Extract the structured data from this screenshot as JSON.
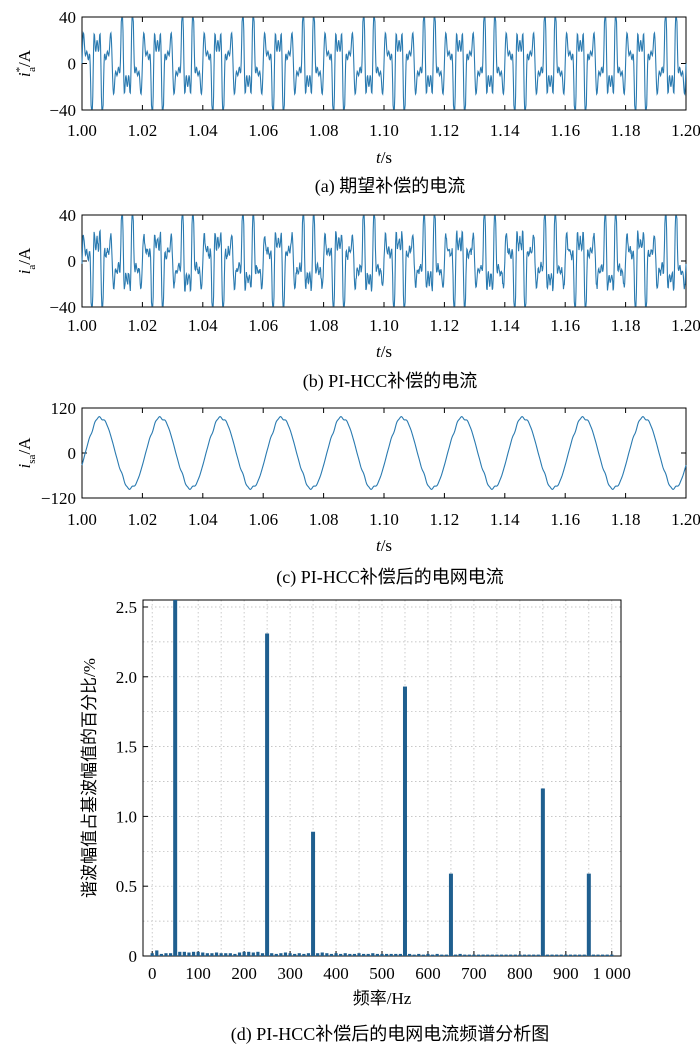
{
  "chart_data": [
    {
      "type": "line",
      "caption": "(a) 期望补偿的电流",
      "ylabel_base": "i",
      "ylabel_sup": "*",
      "ylabel_sub": "a",
      "ylabel_unit": "/A",
      "xlabel_italic": "t",
      "xlabel_unit": "/s",
      "x_range": [
        1.0,
        1.2
      ],
      "xlim": [
        1.0,
        1.2
      ],
      "ylim": [
        -40,
        40
      ],
      "xticks": [
        "1.00",
        "1.02",
        "1.04",
        "1.06",
        "1.08",
        "1.10",
        "1.12",
        "1.14",
        "1.16",
        "1.18",
        "1.20"
      ],
      "yticks": [
        "40",
        "0",
        "−40"
      ],
      "ytick_values": [
        40,
        0,
        -40
      ],
      "waveform": {
        "fundamental_hz": 50,
        "harmonics": [
          [
            5,
            22
          ],
          [
            7,
            6
          ],
          [
            11,
            17
          ],
          [
            13,
            5
          ],
          [
            17,
            10
          ],
          [
            19,
            4
          ]
        ],
        "noise": 0
      },
      "color": "#2a7ab0"
    },
    {
      "type": "line",
      "caption": "(b) PI-HCC补偿的电流",
      "ylabel_base": "i",
      "ylabel_sup": "",
      "ylabel_sub": "a",
      "ylabel_unit": "/A",
      "xlabel_italic": "t",
      "xlabel_unit": "/s",
      "x_range": [
        1.0,
        1.2
      ],
      "xlim": [
        1.0,
        1.2
      ],
      "ylim": [
        -40,
        40
      ],
      "xticks": [
        "1.00",
        "1.02",
        "1.04",
        "1.06",
        "1.08",
        "1.10",
        "1.12",
        "1.14",
        "1.16",
        "1.18",
        "1.20"
      ],
      "yticks": [
        "40",
        "0",
        "−40"
      ],
      "ytick_values": [
        40,
        0,
        -40
      ],
      "waveform": {
        "fundamental_hz": 50,
        "harmonics": [
          [
            5,
            21
          ],
          [
            7,
            7
          ],
          [
            11,
            16
          ],
          [
            13,
            6
          ],
          [
            17,
            10
          ],
          [
            19,
            4
          ]
        ],
        "noise": 2.5
      },
      "color": "#2a7ab0"
    },
    {
      "type": "line",
      "caption": "(c) PI-HCC补偿后的电网电流",
      "ylabel_base": "i",
      "ylabel_sup": "",
      "ylabel_sub": "sa",
      "ylabel_unit": "/A",
      "xlabel_italic": "t",
      "xlabel_unit": "/s",
      "x_range": [
        1.0,
        1.2
      ],
      "xlim": [
        1.0,
        1.2
      ],
      "ylim": [
        -120,
        120
      ],
      "xticks": [
        "1.00",
        "1.02",
        "1.04",
        "1.06",
        "1.08",
        "1.10",
        "1.12",
        "1.14",
        "1.16",
        "1.18",
        "1.20"
      ],
      "yticks": [
        "120",
        "0",
        "−120"
      ],
      "ytick_values": [
        120,
        0,
        -120
      ],
      "waveform": {
        "fundamental_hz": 50,
        "amplitude": 95,
        "phase_deg": -20,
        "harmonics": [
          [
            5,
            2
          ],
          [
            7,
            1.5
          ],
          [
            11,
            1.2
          ],
          [
            13,
            1.0
          ]
        ],
        "noise": 0
      },
      "color": "#2a7ab0"
    },
    {
      "type": "bar",
      "caption": "(d) PI-HCC补偿后的电网电流频谱分析图",
      "xlabel": "频率/Hz",
      "ylabel": "谐波幅值占基波幅值的百分比/%",
      "xlim": [
        -20,
        1020
      ],
      "ylim": [
        0,
        2.55
      ],
      "xticks": [
        "0",
        "100",
        "200",
        "300",
        "400",
        "500",
        "600",
        "700",
        "800",
        "900",
        "1 000"
      ],
      "xtick_values": [
        0,
        100,
        200,
        300,
        400,
        500,
        600,
        700,
        800,
        900,
        1000
      ],
      "yticks": [
        "0",
        "0.5",
        "1.0",
        "1.5",
        "2.0",
        "2.5"
      ],
      "ytick_values": [
        0,
        0.5,
        1.0,
        1.5,
        2.0,
        2.5
      ],
      "grid": true,
      "bars": [
        {
          "x": 50,
          "y": 2.55
        },
        {
          "x": 250,
          "y": 2.31
        },
        {
          "x": 350,
          "y": 0.89
        },
        {
          "x": 550,
          "y": 1.93
        },
        {
          "x": 650,
          "y": 0.59
        },
        {
          "x": 850,
          "y": 1.2
        },
        {
          "x": 950,
          "y": 0.59
        }
      ],
      "small_bars": [
        {
          "x": 0,
          "y": 0.02
        },
        {
          "x": 10,
          "y": 0.04
        },
        {
          "x": 20,
          "y": 0.015
        },
        {
          "x": 30,
          "y": 0.02
        },
        {
          "x": 40,
          "y": 0.02
        },
        {
          "x": 60,
          "y": 0.03
        },
        {
          "x": 70,
          "y": 0.03
        },
        {
          "x": 80,
          "y": 0.025
        },
        {
          "x": 90,
          "y": 0.03
        },
        {
          "x": 100,
          "y": 0.03
        },
        {
          "x": 110,
          "y": 0.025
        },
        {
          "x": 120,
          "y": 0.02
        },
        {
          "x": 130,
          "y": 0.02
        },
        {
          "x": 140,
          "y": 0.025
        },
        {
          "x": 150,
          "y": 0.02
        },
        {
          "x": 160,
          "y": 0.02
        },
        {
          "x": 170,
          "y": 0.02
        },
        {
          "x": 180,
          "y": 0.015
        },
        {
          "x": 190,
          "y": 0.025
        },
        {
          "x": 200,
          "y": 0.03
        },
        {
          "x": 210,
          "y": 0.03
        },
        {
          "x": 220,
          "y": 0.025
        },
        {
          "x": 230,
          "y": 0.03
        },
        {
          "x": 240,
          "y": 0.02
        },
        {
          "x": 260,
          "y": 0.02
        },
        {
          "x": 270,
          "y": 0.015
        },
        {
          "x": 280,
          "y": 0.02
        },
        {
          "x": 290,
          "y": 0.025
        },
        {
          "x": 300,
          "y": 0.02
        },
        {
          "x": 310,
          "y": 0.015
        },
        {
          "x": 320,
          "y": 0.02
        },
        {
          "x": 330,
          "y": 0.015
        },
        {
          "x": 340,
          "y": 0.02
        },
        {
          "x": 360,
          "y": 0.02
        },
        {
          "x": 370,
          "y": 0.025
        },
        {
          "x": 380,
          "y": 0.02
        },
        {
          "x": 390,
          "y": 0.015
        },
        {
          "x": 400,
          "y": 0.02
        },
        {
          "x": 410,
          "y": 0.015
        },
        {
          "x": 420,
          "y": 0.02
        },
        {
          "x": 430,
          "y": 0.015
        },
        {
          "x": 440,
          "y": 0.015
        },
        {
          "x": 450,
          "y": 0.02
        },
        {
          "x": 460,
          "y": 0.015
        },
        {
          "x": 470,
          "y": 0.015
        },
        {
          "x": 480,
          "y": 0.02
        },
        {
          "x": 490,
          "y": 0.015
        },
        {
          "x": 500,
          "y": 0.015
        },
        {
          "x": 510,
          "y": 0.015
        },
        {
          "x": 520,
          "y": 0.015
        },
        {
          "x": 530,
          "y": 0.015
        },
        {
          "x": 540,
          "y": 0.015
        },
        {
          "x": 560,
          "y": 0.015
        },
        {
          "x": 570,
          "y": 0.01
        },
        {
          "x": 580,
          "y": 0.015
        },
        {
          "x": 590,
          "y": 0.01
        },
        {
          "x": 600,
          "y": 0.015
        },
        {
          "x": 610,
          "y": 0.01
        },
        {
          "x": 620,
          "y": 0.015
        },
        {
          "x": 630,
          "y": 0.01
        },
        {
          "x": 640,
          "y": 0.01
        },
        {
          "x": 660,
          "y": 0.01
        },
        {
          "x": 670,
          "y": 0.015
        },
        {
          "x": 680,
          "y": 0.01
        },
        {
          "x": 690,
          "y": 0.01
        },
        {
          "x": 700,
          "y": 0.01
        },
        {
          "x": 710,
          "y": 0.01
        },
        {
          "x": 720,
          "y": 0.01
        },
        {
          "x": 730,
          "y": 0.01
        },
        {
          "x": 740,
          "y": 0.01
        },
        {
          "x": 750,
          "y": 0.01
        },
        {
          "x": 760,
          "y": 0.01
        },
        {
          "x": 770,
          "y": 0.01
        },
        {
          "x": 780,
          "y": 0.01
        },
        {
          "x": 790,
          "y": 0.01
        },
        {
          "x": 800,
          "y": 0.01
        },
        {
          "x": 810,
          "y": 0.01
        },
        {
          "x": 820,
          "y": 0.01
        },
        {
          "x": 830,
          "y": 0.01
        },
        {
          "x": 840,
          "y": 0.01
        },
        {
          "x": 860,
          "y": 0.01
        },
        {
          "x": 870,
          "y": 0.01
        },
        {
          "x": 880,
          "y": 0.01
        },
        {
          "x": 890,
          "y": 0.01
        },
        {
          "x": 900,
          "y": 0.01
        },
        {
          "x": 910,
          "y": 0.01
        },
        {
          "x": 920,
          "y": 0.01
        },
        {
          "x": 930,
          "y": 0.01
        },
        {
          "x": 940,
          "y": 0.01
        },
        {
          "x": 960,
          "y": 0.01
        },
        {
          "x": 970,
          "y": 0.01
        },
        {
          "x": 980,
          "y": 0.01
        },
        {
          "x": 990,
          "y": 0.01
        },
        {
          "x": 1000,
          "y": 0.01
        }
      ],
      "color": "#1f5f8f"
    }
  ]
}
